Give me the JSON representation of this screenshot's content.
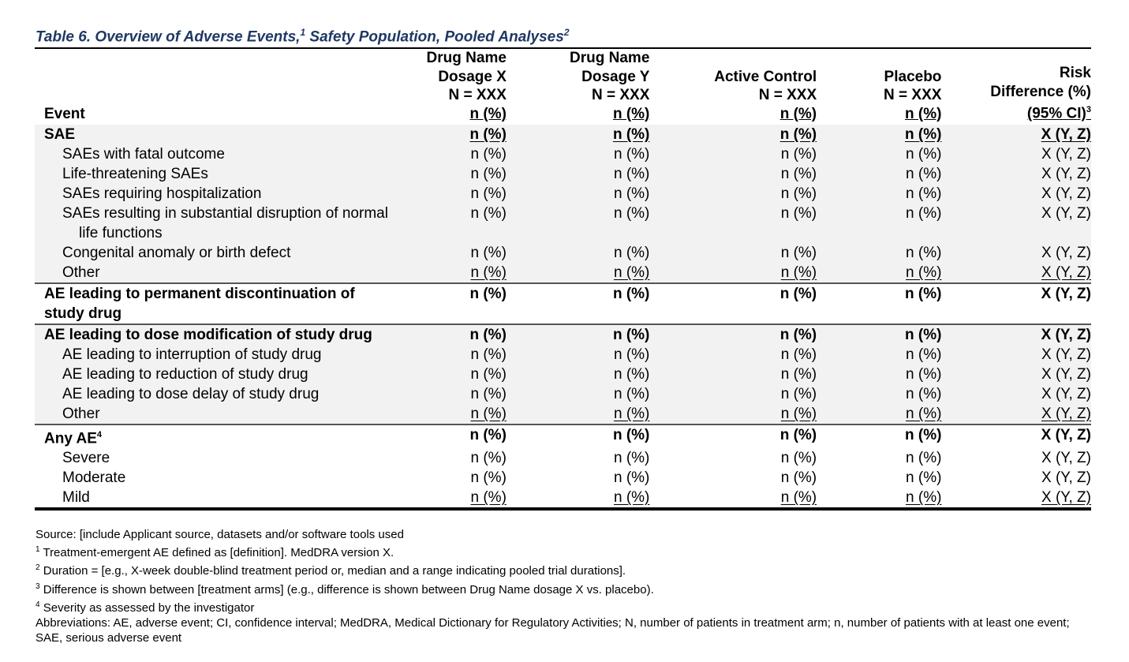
{
  "title": {
    "text": "Table 6. Overview of Adverse Events,",
    "sup1": "1",
    "text2": " Safety Population, Pooled Analyses",
    "sup2": "2"
  },
  "header": {
    "event": "Event",
    "cols": [
      {
        "l1": "Drug Name",
        "l2": "Dosage X",
        "l3": "N = XXX",
        "l4": "n (%)"
      },
      {
        "l1": "Drug Name",
        "l2": "Dosage Y",
        "l3": "N = XXX",
        "l4": "n (%)"
      },
      {
        "l1": "",
        "l2": "Active Control",
        "l3": "N = XXX",
        "l4": "n (%)"
      },
      {
        "l1": "",
        "l2": "Placebo",
        "l3": "N = XXX",
        "l4": "n (%)"
      },
      {
        "l1": "Risk",
        "l2": "Difference (%)",
        "l3": "(95% CI)",
        "l3sup": "3"
      }
    ]
  },
  "rows": [
    {
      "label": "SAE",
      "v": [
        "n (%)",
        "n (%)",
        "n (%)",
        "n (%)",
        "X (Y, Z)"
      ]
    },
    {
      "label": "SAEs with fatal outcome",
      "v": [
        "n (%)",
        "n (%)",
        "n (%)",
        "n (%)",
        "X (Y, Z)"
      ]
    },
    {
      "label": "Life-threatening SAEs",
      "v": [
        "n (%)",
        "n (%)",
        "n (%)",
        "n (%)",
        "X (Y, Z)"
      ]
    },
    {
      "label": "SAEs requiring hospitalization",
      "v": [
        "n (%)",
        "n (%)",
        "n (%)",
        "n (%)",
        "X (Y, Z)"
      ]
    },
    {
      "label": "SAEs resulting in substantial disruption of normal life functions",
      "v": [
        "n (%)",
        "n (%)",
        "n (%)",
        "n (%)",
        "X (Y, Z)"
      ]
    },
    {
      "label": "Congenital anomaly or birth defect",
      "v": [
        "n (%)",
        "n (%)",
        "n (%)",
        "n (%)",
        "X (Y, Z)"
      ]
    },
    {
      "label": "Other",
      "v": [
        "n (%)",
        "n (%)",
        "n (%)",
        "n (%)",
        "X (Y, Z)"
      ]
    },
    {
      "label": "AE leading to permanent discontinuation of study drug",
      "v": [
        "n (%)",
        "n (%)",
        "n (%)",
        "n (%)",
        "X (Y, Z)"
      ]
    },
    {
      "label": "AE leading to dose modification of study drug",
      "v": [
        "n (%)",
        "n (%)",
        "n (%)",
        "n (%)",
        "X (Y, Z)"
      ]
    },
    {
      "label": "AE leading to interruption of study drug",
      "v": [
        "n (%)",
        "n (%)",
        "n (%)",
        "n (%)",
        "X (Y, Z)"
      ]
    },
    {
      "label": "AE leading to reduction of study drug",
      "v": [
        "n (%)",
        "n (%)",
        "n (%)",
        "n (%)",
        "X (Y, Z)"
      ]
    },
    {
      "label": "AE leading to dose delay of study drug",
      "v": [
        "n (%)",
        "n (%)",
        "n (%)",
        "n (%)",
        "X (Y, Z)"
      ]
    },
    {
      "label": "Other",
      "v": [
        "n (%)",
        "n (%)",
        "n (%)",
        "n (%)",
        "X (Y, Z)"
      ]
    },
    {
      "label": "Any AE",
      "sup": "4",
      "v": [
        "n (%)",
        "n (%)",
        "n (%)",
        "n (%)",
        "X (Y, Z)"
      ]
    },
    {
      "label": "Severe",
      "v": [
        "n (%)",
        "n (%)",
        "n (%)",
        "n (%)",
        "X (Y, Z)"
      ]
    },
    {
      "label": "Moderate",
      "v": [
        "n (%)",
        "n (%)",
        "n (%)",
        "n (%)",
        "X (Y, Z)"
      ]
    },
    {
      "label": "Mild",
      "v": [
        "n (%)",
        "n (%)",
        "n (%)",
        "n (%)",
        "X (Y, Z)"
      ]
    }
  ],
  "footnotes": {
    "source": "Source: [include Applicant source, datasets and/or software tools used",
    "n1_sup": "1",
    "n1": " Treatment-emergent AE defined as [definition]. MedDRA version X.",
    "n2_sup": "2",
    "n2": " Duration = [e.g., X-week double-blind treatment period or, median and a range indicating pooled trial durations].",
    "n3_sup": "3",
    "n3": " Difference is shown between [treatment arms] (e.g., difference is shown between Drug Name dosage X vs. placebo).",
    "n4_sup": "4",
    "n4": " Severity as assessed by the investigator",
    "abbrev": "Abbreviations: AE, adverse event; CI, confidence interval; MedDRA, Medical Dictionary for Regulatory Activities; N, number of patients in treatment arm; n, number of patients with at least one event; SAE, serious adverse event"
  }
}
